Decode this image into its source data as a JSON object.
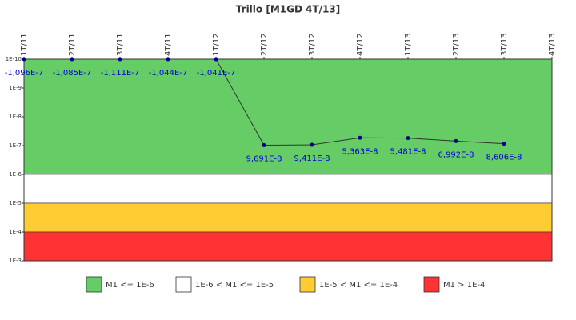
{
  "chart_data": {
    "type": "line",
    "title": "Trillo [M1GD 4T/13]",
    "categories": [
      "1T/11",
      "2T/11",
      "3T/11",
      "4T/11",
      "1T/12",
      "2T/12",
      "3T/12",
      "4T/12",
      "1T/13",
      "2T/13",
      "3T/13",
      "4T/13"
    ],
    "series": [
      {
        "color": "#000080",
        "line_color": "#333333",
        "values": [
          -1.096e-07,
          -1.085e-07,
          -1.111e-07,
          -1.044e-07,
          -1.041e-07,
          9.691e-08,
          9.411e-08,
          5.363e-08,
          5.481e-08,
          6.992e-08,
          8.606e-08,
          null
        ],
        "value_labels": [
          "-1,096E-7",
          "-1,085E-7",
          "-1,111E-7",
          "-1,044E-7",
          "-1,041E-7",
          "9,691E-8",
          "9,411E-8",
          "5,363E-8",
          "5,481E-8",
          "6,992E-8",
          "8,606E-8",
          null
        ]
      }
    ],
    "log_scale": true,
    "y_inverted": true,
    "ylim": [
      1e-10,
      0.001
    ],
    "yticks": [
      {
        "value": 1e-10,
        "label": "1E-10"
      },
      {
        "value": 1e-09,
        "label": "1E-9"
      },
      {
        "value": 1e-08,
        "label": "1E-8"
      },
      {
        "value": 1e-07,
        "label": "1E-7"
      },
      {
        "value": 1e-06,
        "label": "1E-6"
      },
      {
        "value": 1e-05,
        "label": "1E-5"
      },
      {
        "value": 0.0001,
        "label": "1E-4"
      },
      {
        "value": 0.001,
        "label": "1E-3"
      }
    ],
    "bands": [
      {
        "name": "M1 <= 1E-6",
        "color": "#66cc66",
        "from": 1e-10,
        "to": 1e-06
      },
      {
        "name": "1E-6 < M1 <= 1E-5",
        "color": "#ffffff",
        "from": 1e-06,
        "to": 1e-05
      },
      {
        "name": "1E-5 < M1 <= 1E-4",
        "color": "#ffcc33",
        "from": 1e-05,
        "to": 0.0001
      },
      {
        "name": "M1 > 1E-4",
        "color": "#ff3333",
        "from": 0.0001,
        "to": 0.001
      }
    ],
    "legend": "bottom"
  }
}
